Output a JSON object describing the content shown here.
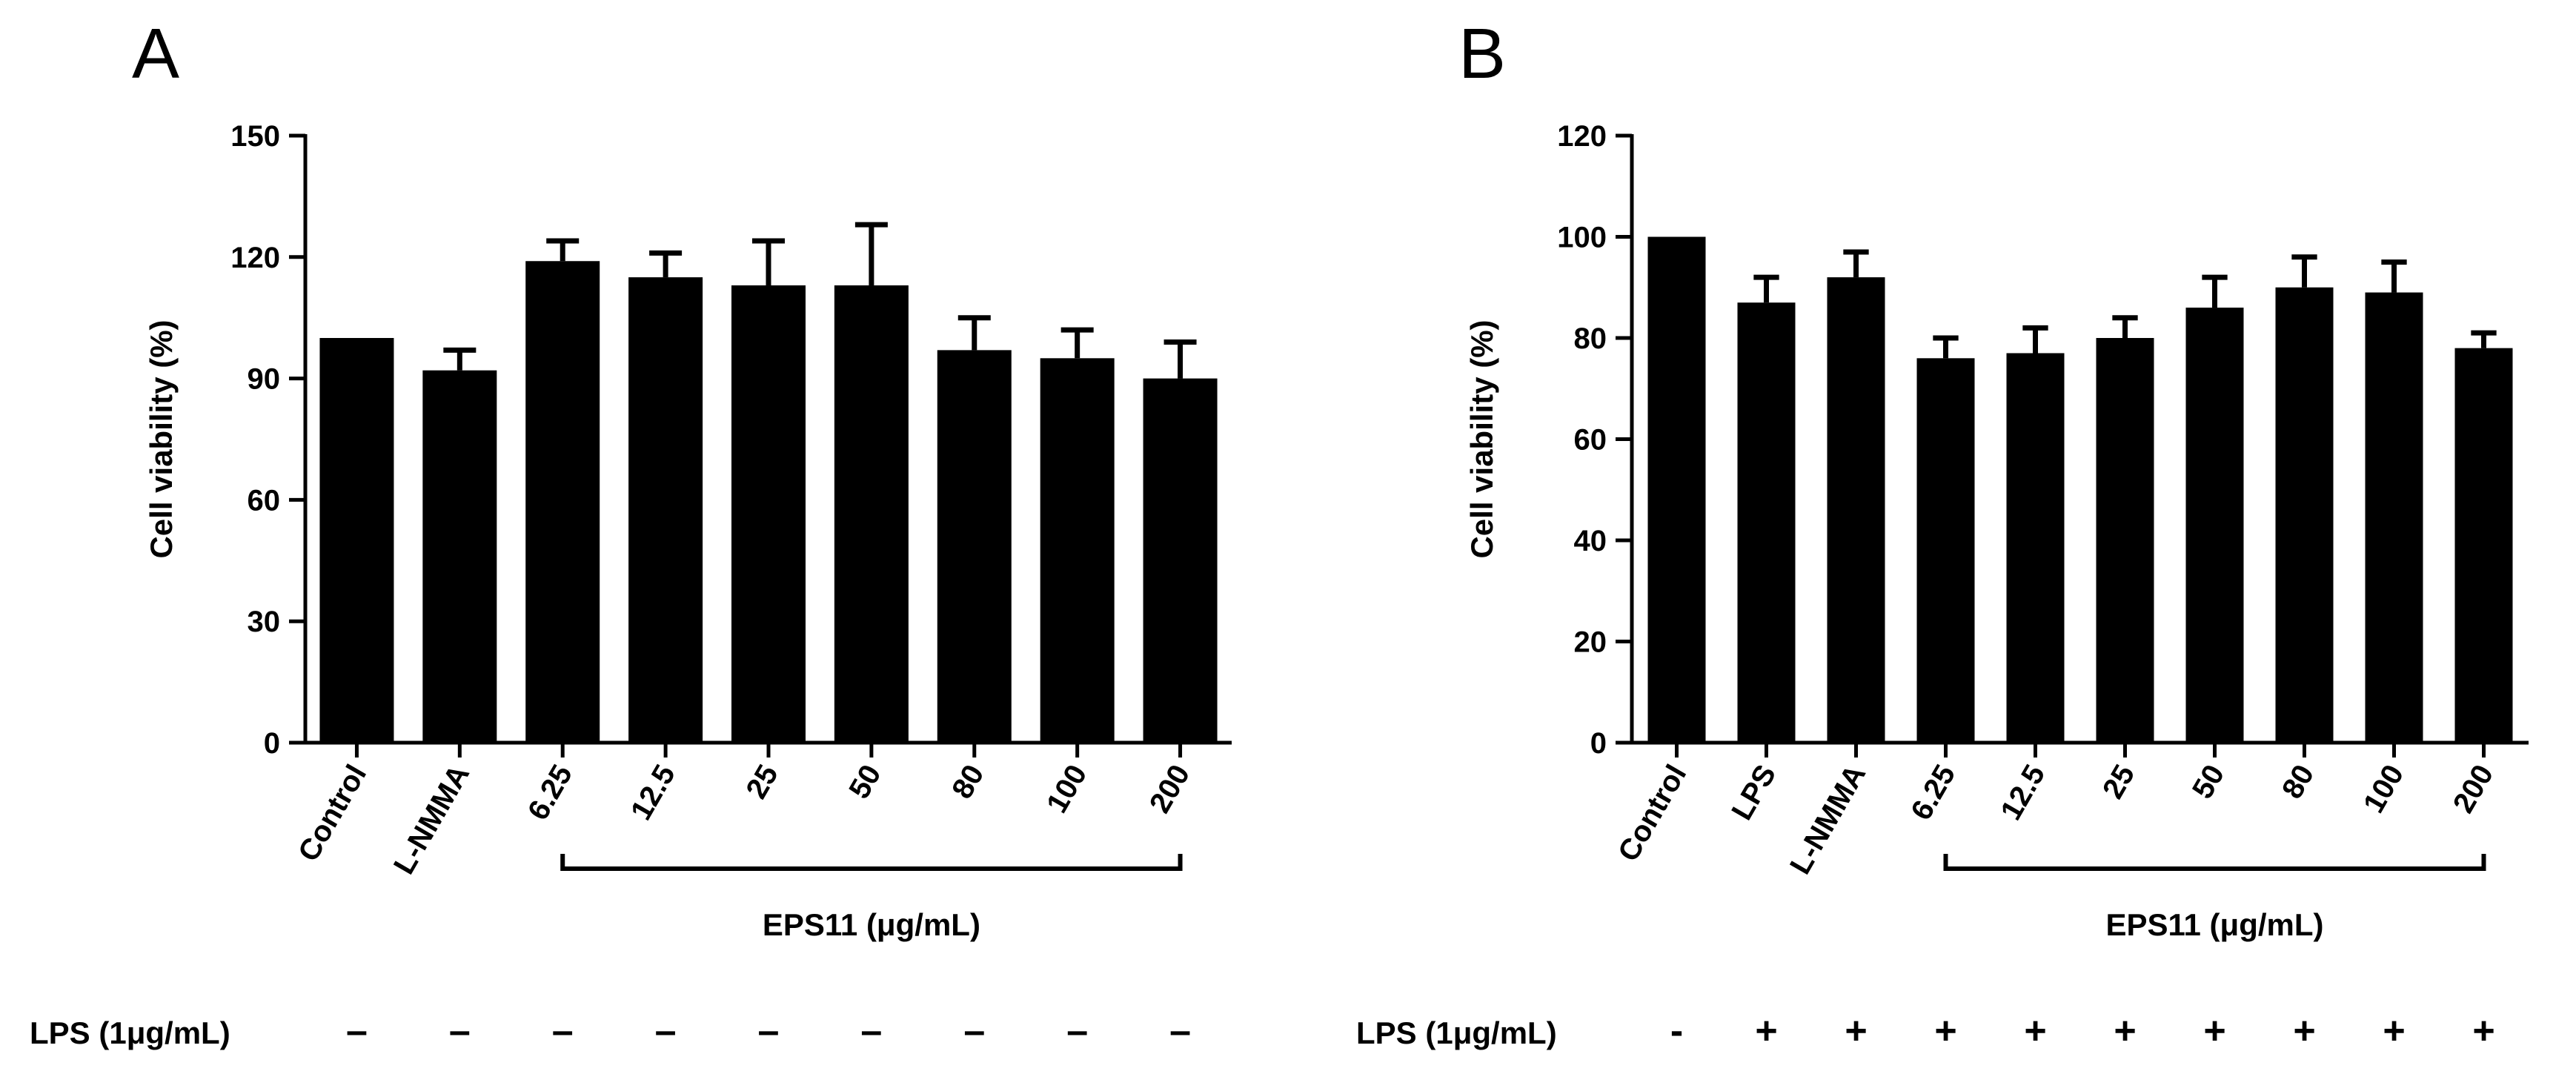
{
  "colors": {
    "bar": "#000000",
    "axis": "#000000",
    "background": "#ffffff"
  },
  "lps_row_label": "LPS (1μg/mL)",
  "chart_data": [
    {
      "type": "bar",
      "panel": "A",
      "ylabel": "Cell viability (%)",
      "ylim": [
        0,
        150
      ],
      "yticks": [
        0,
        30,
        60,
        90,
        120,
        150
      ],
      "categories": [
        "Control",
        "L-NMMA",
        "6.25",
        "12.5",
        "25",
        "50",
        "80",
        "100",
        "200"
      ],
      "values": [
        100,
        92,
        119,
        115,
        113,
        113,
        97,
        95,
        90
      ],
      "errors": [
        0,
        5,
        5,
        6,
        11,
        15,
        8,
        7,
        9
      ],
      "bracket": {
        "label": "EPS11 (μg/mL)",
        "from": "6.25",
        "to": "200"
      },
      "lps": [
        "–",
        "–",
        "–",
        "–",
        "–",
        "–",
        "–",
        "–",
        "–"
      ]
    },
    {
      "type": "bar",
      "panel": "B",
      "ylabel": "Cell viability (%)",
      "ylim": [
        0,
        120
      ],
      "yticks": [
        0,
        20,
        40,
        60,
        80,
        100,
        120
      ],
      "categories": [
        "Control",
        "LPS",
        "L-NMMA",
        "6.25",
        "12.5",
        "25",
        "50",
        "80",
        "100",
        "200"
      ],
      "values": [
        100,
        87,
        92,
        76,
        77,
        80,
        86,
        90,
        89,
        78
      ],
      "errors": [
        0,
        5,
        5,
        4,
        5,
        4,
        6,
        6,
        6,
        3
      ],
      "bracket": {
        "label": "EPS11 (μg/mL)",
        "from": "6.25",
        "to": "200"
      },
      "lps": [
        "-",
        "+",
        "+",
        "+",
        "+",
        "+",
        "+",
        "+",
        "+",
        "+"
      ]
    }
  ]
}
